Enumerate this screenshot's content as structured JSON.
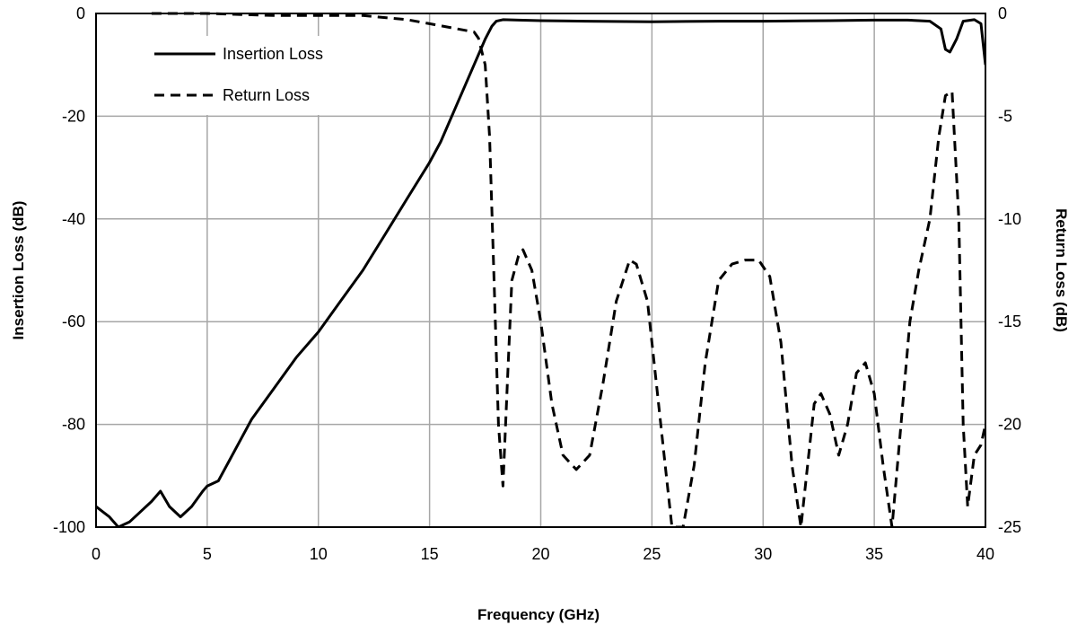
{
  "chart_data": {
    "type": "line",
    "title": "",
    "xlabel": "Frequency (GHz)",
    "ylabel_left": "Insertion Loss (dB)",
    "ylabel_right": "Return Loss (dB)",
    "xlim": [
      0,
      40
    ],
    "ylim_left": [
      -100,
      0
    ],
    "ylim_right": [
      -25,
      0
    ],
    "x_ticks": [
      0,
      5,
      10,
      15,
      20,
      25,
      30,
      35,
      40
    ],
    "y_ticks_left": [
      0,
      -20,
      -40,
      -60,
      -80,
      -100
    ],
    "y_ticks_right": [
      0,
      -5,
      -10,
      -15,
      -20,
      -25
    ],
    "grid": true,
    "legend_position": "top-left",
    "series": [
      {
        "name": "Insertion Loss",
        "axis": "left",
        "style": "solid",
        "color": "#000000",
        "x": [
          0,
          0.3,
          0.6,
          1.0,
          1.5,
          2.0,
          2.5,
          2.9,
          3.3,
          3.8,
          4.3,
          4.8,
          5.0,
          5.5,
          6.0,
          6.5,
          7.0,
          7.5,
          8.0,
          9.0,
          10.0,
          11.0,
          12.0,
          13.0,
          14.0,
          15.0,
          15.5,
          16.0,
          16.5,
          17.0,
          17.5,
          17.8,
          18.0,
          18.3,
          19.0,
          20.0,
          22.0,
          25.0,
          28.0,
          30.0,
          33.0,
          35.0,
          36.5,
          37.5,
          38.0,
          38.2,
          38.4,
          38.7,
          39.0,
          39.5,
          39.8,
          40.0
        ],
        "values": [
          -96,
          -97,
          -98,
          -100,
          -99,
          -97,
          -95,
          -93,
          -96,
          -98,
          -96,
          -93,
          -92,
          -91,
          -87,
          -83,
          -79,
          -76,
          -73,
          -67,
          -62,
          -56,
          -50,
          -43,
          -36,
          -29,
          -25,
          -20,
          -15,
          -10,
          -5,
          -2.5,
          -1.5,
          -1.2,
          -1.3,
          -1.4,
          -1.5,
          -1.6,
          -1.5,
          -1.5,
          -1.4,
          -1.3,
          -1.3,
          -1.5,
          -3,
          -7,
          -7.5,
          -5,
          -1.5,
          -1.2,
          -2,
          -10
        ]
      },
      {
        "name": "Return Loss",
        "axis": "right",
        "style": "dashed",
        "color": "#000000",
        "x": [
          2.5,
          5,
          8,
          10,
          12,
          13,
          14,
          14.5,
          15,
          16,
          16.5,
          17,
          17.2,
          17.5,
          17.7,
          17.9,
          18.1,
          18.3,
          18.5,
          18.7,
          19.0,
          19.2,
          19.6,
          20.0,
          20.5,
          21.0,
          21.6,
          22.2,
          22.8,
          23.4,
          24.0,
          24.3,
          24.8,
          25.2,
          25.6,
          25.9,
          26.4,
          26.9,
          27.4,
          28.0,
          28.6,
          29.2,
          29.8,
          30.3,
          30.8,
          31.3,
          31.7,
          32.0,
          32.3,
          32.6,
          33.0,
          33.4,
          33.8,
          34.2,
          34.6,
          35.0,
          35.4,
          35.8,
          36.2,
          36.6,
          37.0,
          37.5,
          37.9,
          38.2,
          38.5,
          38.8,
          39.0,
          39.2,
          39.5,
          39.8,
          40.0
        ],
        "values": [
          0,
          0,
          -0.1,
          -0.1,
          -0.1,
          -0.2,
          -0.3,
          -0.4,
          -0.5,
          -0.7,
          -0.8,
          -0.9,
          -1.2,
          -2.5,
          -6,
          -13,
          -20,
          -23,
          -18,
          -13,
          -11.8,
          -11.5,
          -12.5,
          -15,
          -19,
          -21.5,
          -22.2,
          -21.5,
          -18,
          -14,
          -12,
          -12.2,
          -14,
          -18,
          -22,
          -25,
          -25,
          -22,
          -17,
          -13,
          -12.2,
          -12,
          -12,
          -12.8,
          -16,
          -22,
          -25,
          -22,
          -19,
          -18.5,
          -19.5,
          -21.5,
          -20,
          -17.5,
          -17,
          -18.5,
          -22,
          -25,
          -20,
          -15,
          -12.5,
          -10,
          -6,
          -4,
          -3.8,
          -10,
          -20,
          -24,
          -21.5,
          -21,
          -20
        ]
      }
    ]
  }
}
